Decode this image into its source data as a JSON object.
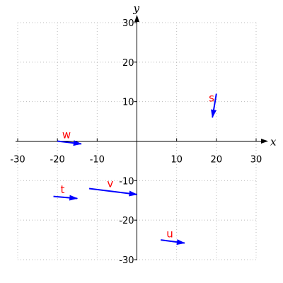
{
  "chart_data": {
    "type": "vector-plot",
    "title": "",
    "xlabel": "x",
    "ylabel": "y",
    "xlim": [
      -30,
      30
    ],
    "ylim": [
      -30,
      30
    ],
    "grid": true,
    "x_ticks": [
      -30,
      -20,
      -10,
      10,
      20,
      30
    ],
    "y_ticks": [
      -30,
      -20,
      -10,
      10,
      20,
      30
    ],
    "vectors": [
      {
        "name": "s",
        "from": [
          20,
          12
        ],
        "to": [
          19,
          6
        ]
      },
      {
        "name": "w",
        "from": [
          -20,
          0
        ],
        "to": [
          -14,
          -0.7
        ]
      },
      {
        "name": "t",
        "from": [
          -21,
          -14
        ],
        "to": [
          -15,
          -14.5
        ]
      },
      {
        "name": "v",
        "from": [
          -12,
          -12
        ],
        "to": [
          0,
          -13.5
        ]
      },
      {
        "name": "u",
        "from": [
          6,
          -25
        ],
        "to": [
          12,
          -25.8
        ]
      }
    ]
  },
  "colors": {
    "vector": "#0000ff",
    "label": "#ff0000",
    "grid": "#bbbbbb",
    "axis": "#000000"
  }
}
